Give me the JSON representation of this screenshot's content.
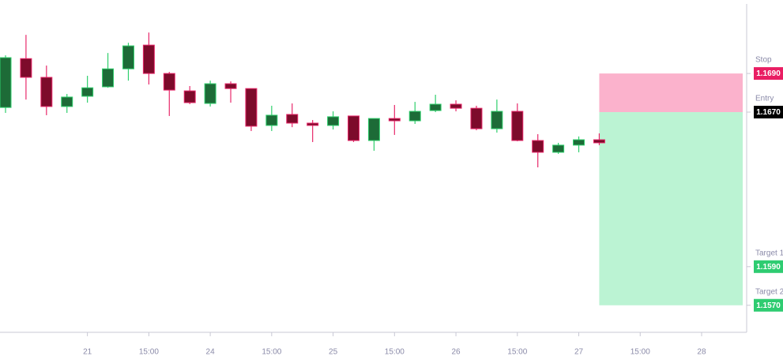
{
  "chart_data": {
    "type": "candlestick",
    "xlim": [
      -0.27,
      36.2
    ],
    "xticks": [
      {
        "value": 4,
        "label": "21"
      },
      {
        "value": 7,
        "label": "15:00"
      },
      {
        "value": 10,
        "label": "24"
      },
      {
        "value": 13,
        "label": "15:00"
      },
      {
        "value": 16,
        "label": "25"
      },
      {
        "value": 19,
        "label": "15:00"
      },
      {
        "value": 22,
        "label": "26"
      },
      {
        "value": 25,
        "label": "15:00"
      },
      {
        "value": 28,
        "label": "27"
      },
      {
        "value": 31,
        "label": "15:00"
      },
      {
        "value": 34,
        "label": "28"
      }
    ],
    "ylim": [
      1.1556,
      1.1726
    ],
    "open": [
      1.16724,
      1.16977,
      1.1688,
      1.16729,
      1.16782,
      1.16831,
      1.16924,
      1.17047,
      1.169,
      1.1681,
      1.16745,
      1.16847,
      1.16822,
      1.16631,
      1.16688,
      1.16643,
      1.16631,
      1.1668,
      1.16553,
      1.16667,
      1.16655,
      1.16708,
      1.16741,
      1.1672,
      1.16614,
      1.16704,
      1.16553,
      1.16492,
      1.16529,
      1.16557
    ],
    "high": [
      1.16994,
      1.171,
      1.16941,
      1.16794,
      1.16888,
      1.17006,
      1.17059,
      1.17112,
      1.16908,
      1.16835,
      1.16863,
      1.16859,
      1.16822,
      1.16733,
      1.16745,
      1.16659,
      1.16704,
      1.1668,
      1.16667,
      1.16737,
      1.16753,
      1.1679,
      1.16761,
      1.16733,
      1.16765,
      1.16745,
      1.16586,
      1.16541,
      1.16574,
      1.1659
    ],
    "low": [
      1.16696,
      1.16765,
      1.16684,
      1.16696,
      1.16749,
      1.16826,
      1.16863,
      1.16843,
      1.1668,
      1.16741,
      1.16729,
      1.16749,
      1.16602,
      1.16602,
      1.16622,
      1.16545,
      1.1661,
      1.16545,
      1.165,
      1.16582,
      1.16639,
      1.167,
      1.16704,
      1.16606,
      1.16594,
      1.16549,
      1.16414,
      1.16484,
      1.16492,
      1.16529
    ],
    "close": [
      1.16982,
      1.1688,
      1.16729,
      1.16778,
      1.16826,
      1.16924,
      1.17043,
      1.169,
      1.16814,
      1.16749,
      1.16847,
      1.16822,
      1.16627,
      1.16684,
      1.16643,
      1.16631,
      1.16676,
      1.16553,
      1.16667,
      1.16655,
      1.16704,
      1.16741,
      1.1672,
      1.16614,
      1.16704,
      1.16553,
      1.16492,
      1.16529,
      1.16557,
      1.16541
    ],
    "up_color": "#1d6b37",
    "up_wick_color": "#2fcf6c",
    "down_color": "#7d0b2b",
    "down_wick_color": "#e8286a",
    "stop_zone_color": "#fbb2cc",
    "target_zone_color": "#bbf3d3",
    "levels": [
      {
        "name": "Stop",
        "value": 1.169,
        "value_label": "1.1690",
        "color": "#e91e63"
      },
      {
        "name": "Entry",
        "value": 1.167,
        "value_label": "1.1670",
        "color": "#000000"
      },
      {
        "name": "Target 1",
        "value": 1.159,
        "value_label": "1.1590",
        "color": "#2ecc71"
      },
      {
        "name": "Target 2",
        "value": 1.157,
        "value_label": "1.1570",
        "color": "#2ecc71"
      }
    ]
  }
}
